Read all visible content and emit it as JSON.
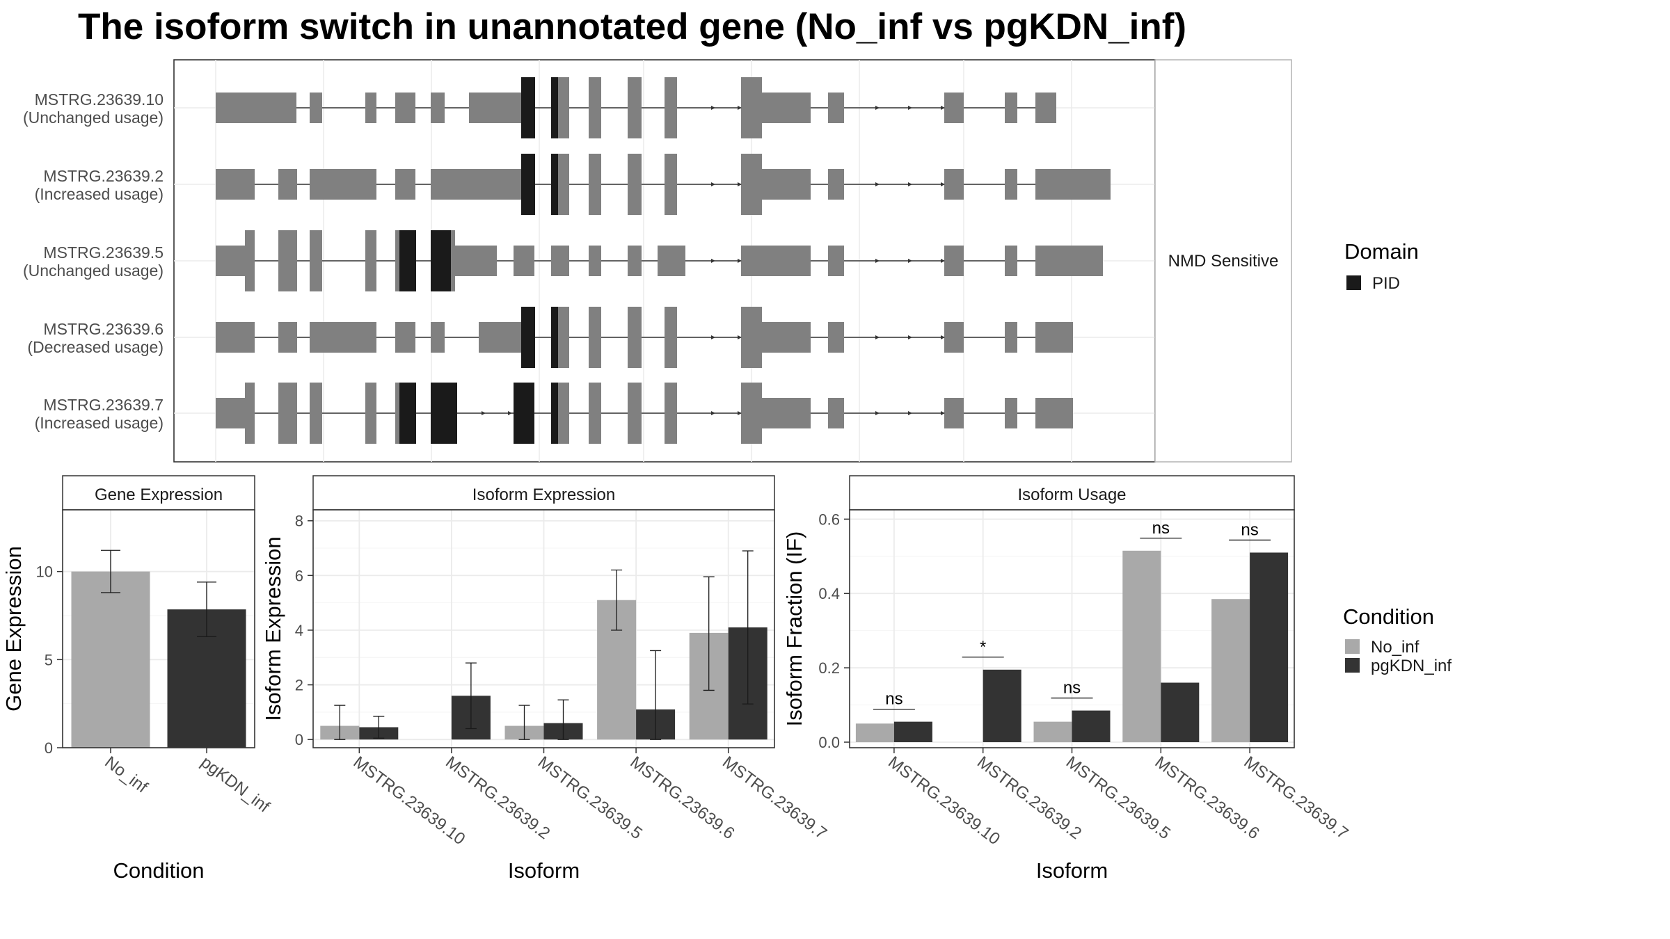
{
  "title": "The isoform switch in unannotated gene (No_inf vs pgKDN_inf)",
  "colors": {
    "exon": "#808080",
    "domain": "#1a1a1a",
    "no_inf": "#a9a9a9",
    "pgkdn_inf": "#333333",
    "grid": "#ebebeb",
    "strip_bg": "#ffffff",
    "panel_border": "#333333"
  },
  "structure_panel": {
    "strip_label": "NMD Sensitive",
    "isoforms": [
      {
        "id": "MSTRG.23639.10",
        "usage": "(Unchanged usage)"
      },
      {
        "id": "MSTRG.23639.2",
        "usage": "(Increased usage)"
      },
      {
        "id": "MSTRG.23639.5",
        "usage": "(Unchanged usage)"
      },
      {
        "id": "MSTRG.23639.6",
        "usage": "(Decreased usage)"
      },
      {
        "id": "MSTRG.23639.7",
        "usage": "(Increased usage)"
      }
    ],
    "legend": {
      "title": "Domain",
      "items": [
        {
          "label": "PID",
          "color": "#1a1a1a"
        }
      ]
    }
  },
  "condition_legend": {
    "title": "Condition",
    "items": [
      {
        "label": "No_inf",
        "color": "#a9a9a9"
      },
      {
        "label": "pgKDN_inf",
        "color": "#333333"
      }
    ]
  },
  "chart_data": [
    {
      "type": "bar",
      "title": "Gene Expression",
      "xlabel": "Condition",
      "ylabel": "Gene Expression",
      "categories": [
        "No_inf",
        "pgKDN_inf"
      ],
      "values": [
        10.0,
        7.85
      ],
      "error_low": [
        8.8,
        6.3
      ],
      "error_high": [
        11.2,
        9.4
      ],
      "ylim": [
        0,
        13.5
      ],
      "yticks": [
        0,
        5,
        10
      ],
      "grid": true
    },
    {
      "type": "bar",
      "title": "Isoform Expression",
      "xlabel": "Isoform",
      "ylabel": "Isoform Expression",
      "categories": [
        "MSTRG.23639.10",
        "MSTRG.23639.2",
        "MSTRG.23639.5",
        "MSTRG.23639.6",
        "MSTRG.23639.7"
      ],
      "series": [
        {
          "name": "No_inf",
          "values": [
            0.5,
            0.0,
            0.5,
            5.1,
            3.9
          ],
          "error_low": [
            0.0,
            0.0,
            0.0,
            4.0,
            1.8
          ],
          "error_high": [
            1.25,
            0.0,
            1.25,
            6.2,
            5.95
          ]
        },
        {
          "name": "pgKDN_inf",
          "values": [
            0.45,
            1.6,
            0.6,
            1.1,
            4.1
          ],
          "error_low": [
            0.05,
            0.4,
            0.0,
            0.0,
            1.3
          ],
          "error_high": [
            0.85,
            2.8,
            1.45,
            3.25,
            6.9
          ]
        }
      ],
      "ylim": [
        -0.3,
        8.4
      ],
      "yticks": [
        0,
        2,
        4,
        6,
        8
      ],
      "grid": true
    },
    {
      "type": "bar",
      "title": "Isoform Usage",
      "xlabel": "Isoform",
      "ylabel": "Isoform Fraction (IF)",
      "categories": [
        "MSTRG.23639.10",
        "MSTRG.23639.2",
        "MSTRG.23639.5",
        "MSTRG.23639.6",
        "MSTRG.23639.7"
      ],
      "series": [
        {
          "name": "No_inf",
          "values": [
            0.05,
            0.0,
            0.055,
            0.515,
            0.385
          ]
        },
        {
          "name": "pgKDN_inf",
          "values": [
            0.055,
            0.195,
            0.085,
            0.16,
            0.51
          ]
        }
      ],
      "significance": [
        "ns",
        "*",
        "ns",
        "ns",
        "ns"
      ],
      "ylim": [
        -0.015,
        0.625
      ],
      "yticks": [
        0.0,
        0.2,
        0.4,
        0.6
      ],
      "grid": true
    }
  ]
}
